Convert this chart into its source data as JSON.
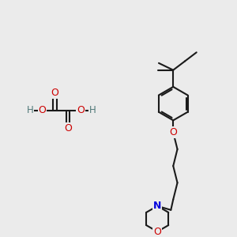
{
  "bg": "#ebebeb",
  "bc": "#1a1a1a",
  "oc": "#cc0000",
  "nc": "#0000dd",
  "hc": "#507878",
  "lw": 1.5,
  "figsize": [
    3.0,
    3.0
  ],
  "dpi": 100,
  "xlim": [
    0,
    10
  ],
  "ylim": [
    0,
    10
  ]
}
